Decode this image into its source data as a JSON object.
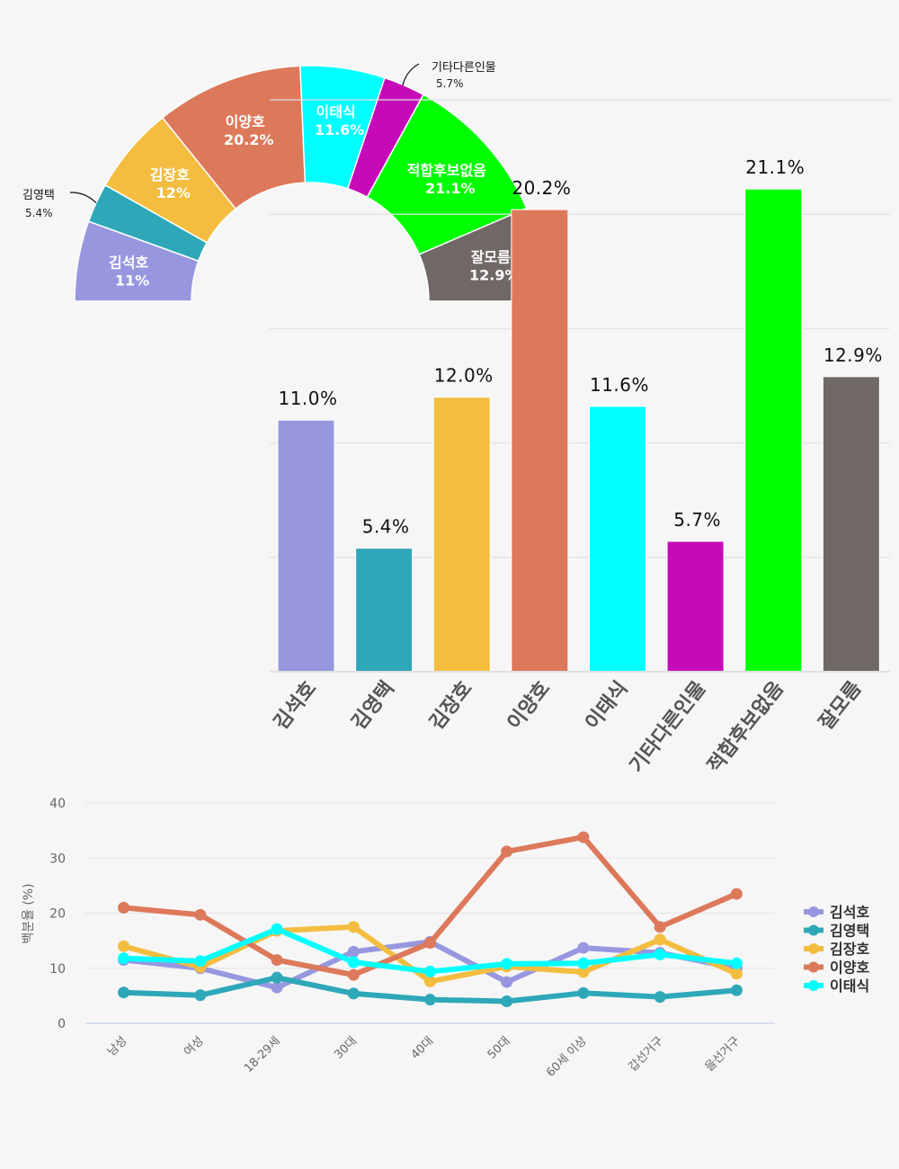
{
  "chart_data": [
    {
      "type": "pie",
      "variant": "semicircle-donut",
      "title": "",
      "categories": [
        "김석호",
        "김영택",
        "김장호",
        "이양호",
        "이태식",
        "기타다른인물",
        "적합후보없음",
        "잘모름"
      ],
      "values": [
        11,
        5.4,
        12,
        20.2,
        11.6,
        5.7,
        21.1,
        12.9
      ],
      "labels": [
        "11%",
        "5.4%",
        "12%",
        "20.2%",
        "11.6%",
        "5.7%",
        "21.1%",
        "12.9%"
      ],
      "colors": [
        "#9797e0",
        "#2ea8b8",
        "#f4bd40",
        "#dd795b",
        "#00ffff",
        "#c60ab8",
        "#00ff00",
        "#706866"
      ],
      "outside_labels": [
        "김영택",
        "기타다른인물"
      ]
    },
    {
      "type": "bar",
      "title": "",
      "xlabel": "",
      "ylabel": "",
      "categories": [
        "김석호",
        "김영택",
        "김장호",
        "이양호",
        "이태식",
        "기타다른인물",
        "적합후보없음",
        "잘모름"
      ],
      "values": [
        11.0,
        5.4,
        12.0,
        20.2,
        11.6,
        5.7,
        21.1,
        12.9
      ],
      "data_labels": [
        "11.0%",
        "5.4%",
        "12.0%",
        "20.2%",
        "11.6%",
        "5.7%",
        "21.1%",
        "12.9%"
      ],
      "colors": [
        "#9797e0",
        "#2ea8b8",
        "#f4bd40",
        "#dd795b",
        "#00ffff",
        "#c60ab8",
        "#00ff00",
        "#706866"
      ],
      "ylim": [
        0,
        25
      ],
      "grid": true,
      "gridline_step": 5
    },
    {
      "type": "line",
      "title": "",
      "xlabel": "",
      "ylabel": "백분율 (%)",
      "categories": [
        "남성",
        "여성",
        "18-29세",
        "30대",
        "40대",
        "50대",
        "60세 이상",
        "갑선거구",
        "을선거구"
      ],
      "yticks": [
        0,
        10,
        20,
        30,
        40
      ],
      "ylim": [
        0,
        40
      ],
      "grid": true,
      "legend": "right",
      "series": [
        {
          "name": "김석호",
          "color": "#9797e0",
          "values": [
            11.5,
            10.0,
            6.5,
            13.0,
            14.8,
            7.5,
            13.7,
            12.8,
            10.0
          ]
        },
        {
          "name": "김영택",
          "color": "#2ea8b8",
          "values": [
            5.6,
            5.1,
            8.3,
            5.4,
            4.3,
            4.0,
            5.5,
            4.8,
            6.0
          ]
        },
        {
          "name": "김장호",
          "color": "#f4bd40",
          "values": [
            14.0,
            10.2,
            16.8,
            17.5,
            7.6,
            10.3,
            9.3,
            15.2,
            9.0
          ]
        },
        {
          "name": "이양호",
          "color": "#dd795b",
          "values": [
            21.0,
            19.7,
            11.5,
            8.8,
            14.6,
            31.2,
            33.8,
            17.5,
            23.5
          ]
        },
        {
          "name": "이태식",
          "color": "#00ffff",
          "values": [
            11.8,
            11.3,
            17.1,
            11.1,
            9.4,
            10.8,
            10.9,
            12.5,
            10.9
          ]
        }
      ]
    }
  ]
}
